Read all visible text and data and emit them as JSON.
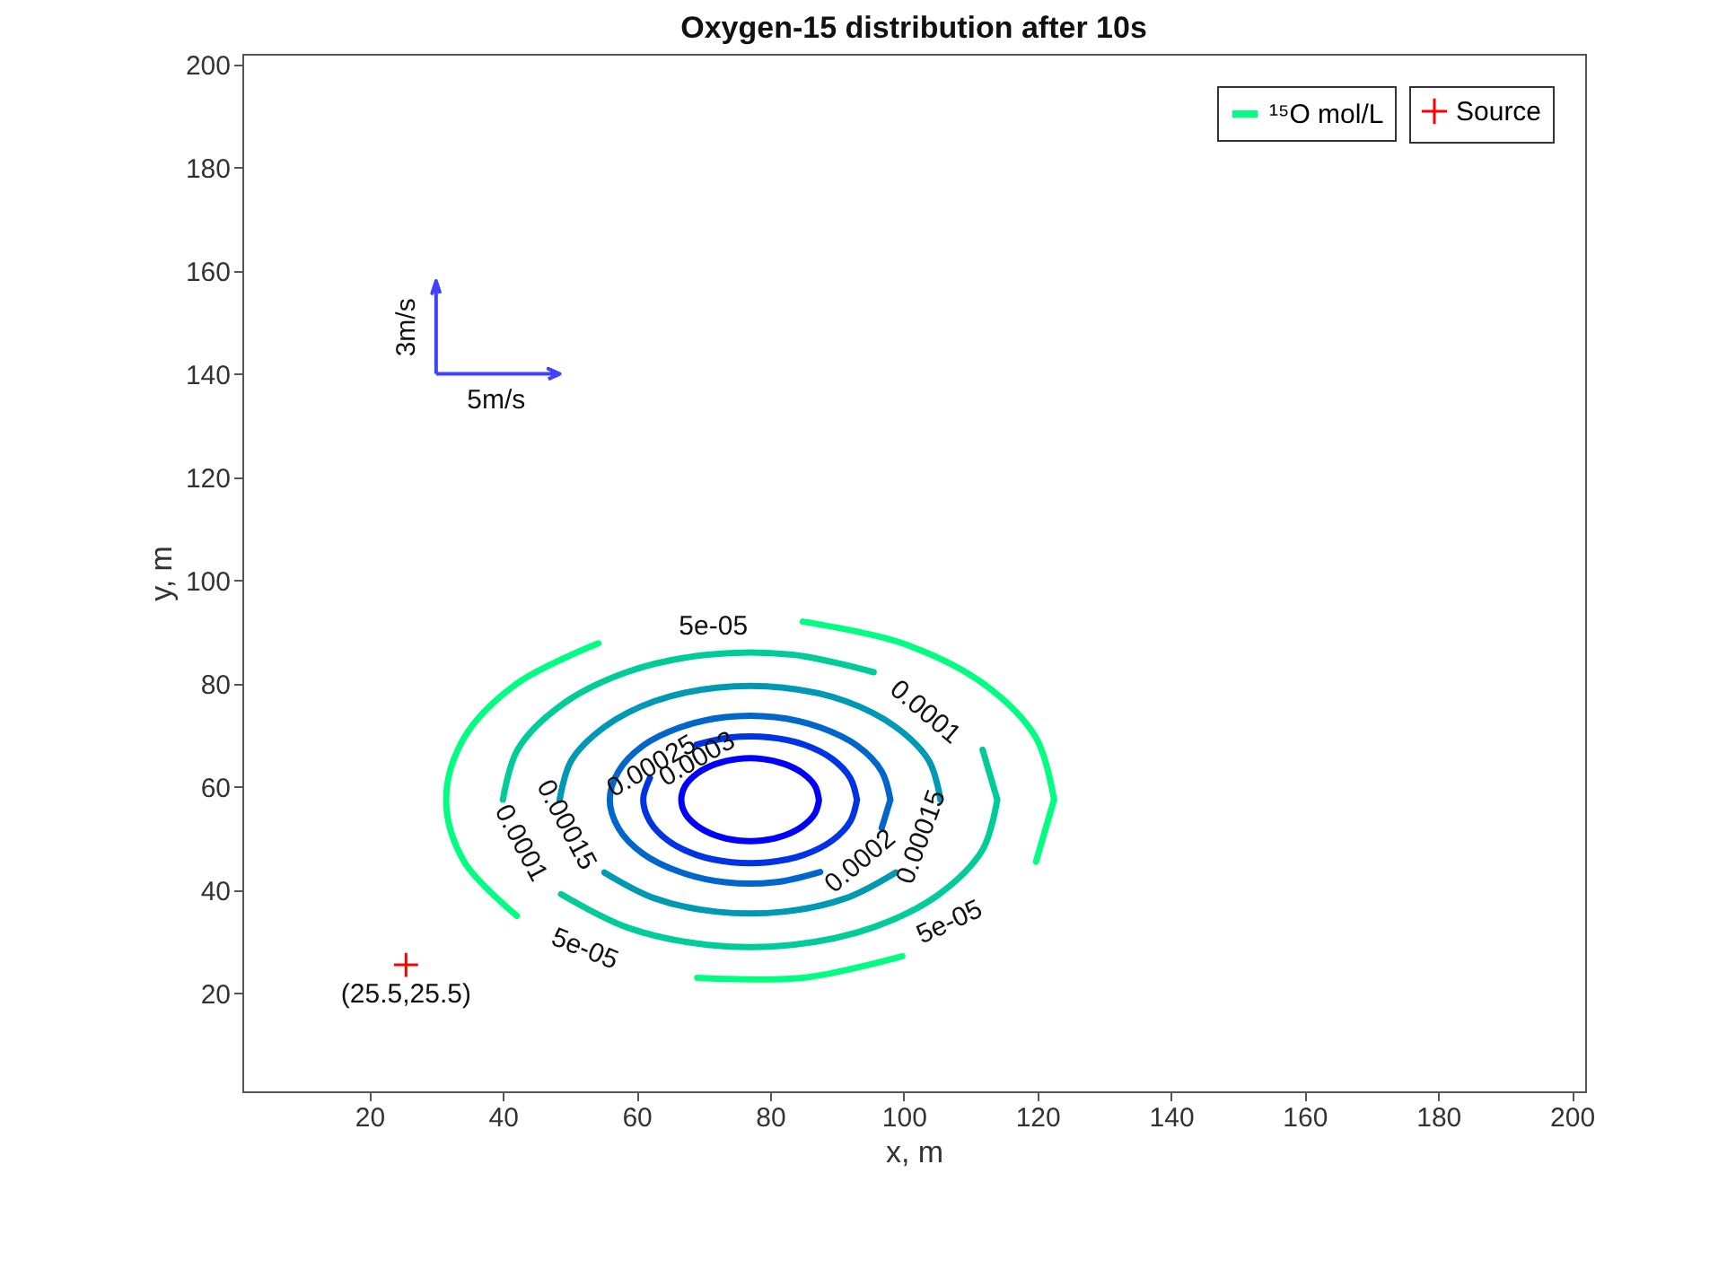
{
  "chart_data": {
    "type": "line",
    "title": "Oxygen-15 distribution after 10s",
    "xlabel": "x, m",
    "ylabel": "y, m",
    "xlim": [
      1,
      202
    ],
    "ylim": [
      1,
      202
    ],
    "xticks": [
      20,
      40,
      60,
      80,
      100,
      120,
      140,
      160,
      180,
      200
    ],
    "yticks": [
      20,
      40,
      60,
      80,
      100,
      120,
      140,
      160,
      180,
      200
    ],
    "grid": false,
    "legend": "top right",
    "line_style": "solid",
    "series": [
      {
        "name": "¹⁵O mol/L",
        "color": "#00ff80",
        "x": [
          122.5,
          119.8,
          111.9,
          99.8,
          84.9,
          69.1,
          54.3,
          42.1,
          34.2,
          31.5,
          34.2,
          42.1,
          54.3,
          69.1,
          84.9,
          99.8,
          111.9,
          119.8,
          122.5
        ],
        "values": [
          57.5,
          69.5,
          80,
          87.8,
          92,
          null,
          87.8,
          80,
          69.5,
          57.5,
          45.5,
          35,
          null,
          23,
          23,
          27.2,
          null,
          45.5,
          57.5
        ]
      },
      {
        "color": "#00cc99",
        "x": [
          114,
          111.8,
          105.3,
          95.5,
          83.4,
          70.6,
          58.5,
          48.7,
          42.2,
          40,
          42.2,
          48.7,
          58.5,
          70.6,
          83.4,
          95.5,
          105.3,
          111.8,
          114
        ],
        "values": [
          57.5,
          67.2,
          null,
          82.2,
          85.6,
          85.6,
          82.2,
          75.8,
          67.2,
          57.5,
          null,
          39.2,
          32.8,
          29.4,
          29.4,
          32.8,
          39.2,
          47.8,
          57.5
        ]
      },
      {
        "color": "#0099b3",
        "x": [
          105.5,
          103.8,
          98.8,
          91.3,
          82,
          72,
          62.7,
          55.2,
          50.2,
          48.5,
          50.2,
          55.2,
          62.7,
          72,
          82,
          91.3,
          98.8,
          103.8,
          105.5
        ],
        "values": [
          57.5,
          65,
          71.6,
          76.6,
          79.2,
          79.2,
          76.6,
          71.6,
          65,
          57.5,
          null,
          43.4,
          38.4,
          35.8,
          35.8,
          38.4,
          43.4,
          null,
          57.5
        ]
      },
      {
        "color": "#0066cc",
        "x": [
          98,
          96.7,
          93.1,
          87.5,
          80.7,
          73.3,
          66.5,
          60.9,
          57.3,
          56,
          57.3,
          60.9,
          66.5,
          73.3,
          80.7,
          87.5,
          93.1,
          96.7,
          98
        ],
        "values": [
          57.5,
          63,
          67.9,
          71.5,
          73.5,
          73.5,
          71.5,
          67.9,
          63,
          57.5,
          52,
          47.1,
          43.5,
          41.5,
          41.5,
          43.5,
          null,
          52,
          57.5
        ]
      },
      {
        "color": "#0033e6",
        "x": [
          93,
          92,
          89.3,
          85,
          79.8,
          74.2,
          69,
          64.7,
          62,
          61,
          62,
          64.7,
          69,
          74.2,
          79.8,
          85,
          89.3,
          92,
          93
        ],
        "values": [
          57.5,
          61.7,
          65.4,
          68.2,
          69.6,
          69.6,
          68.2,
          null,
          61.7,
          57.5,
          53.3,
          49.6,
          46.8,
          45.4,
          45.4,
          46.8,
          49.6,
          53.3,
          57.5
        ]
      },
      {
        "color": "#0000ff",
        "x": [
          87.3,
          86.7,
          84.9,
          82.2,
          78.8,
          75.2,
          71.8,
          69.1,
          67.3,
          66.7,
          67.3,
          69.1,
          71.8,
          75.2,
          78.8,
          82.2,
          84.9,
          86.7,
          87.3
        ],
        "values": [
          57.5,
          60.2,
          62.6,
          64.4,
          65.4,
          65.4,
          64.4,
          62.6,
          60.2,
          57.5,
          54.8,
          52.4,
          50.6,
          49.6,
          49.6,
          50.6,
          52.4,
          54.8,
          57.3
        ]
      },
      {
        "type": "scatter",
        "name": "Source",
        "color": "#ff0000",
        "marker": "cross",
        "x": [
          25.5
        ],
        "values": [
          25.5
        ]
      }
    ],
    "annotations": [
      "5e-05",
      "5e-05",
      "5e-05",
      "0.0001",
      "0.0001",
      "0.00015",
      "0.00015",
      "0.0002",
      "0.00025",
      "0.0003",
      {
        "text": "(25.5,25.5)",
        "x": 25.5,
        "y": 25.5
      },
      "5m/s",
      "3m/s"
    ]
  }
}
